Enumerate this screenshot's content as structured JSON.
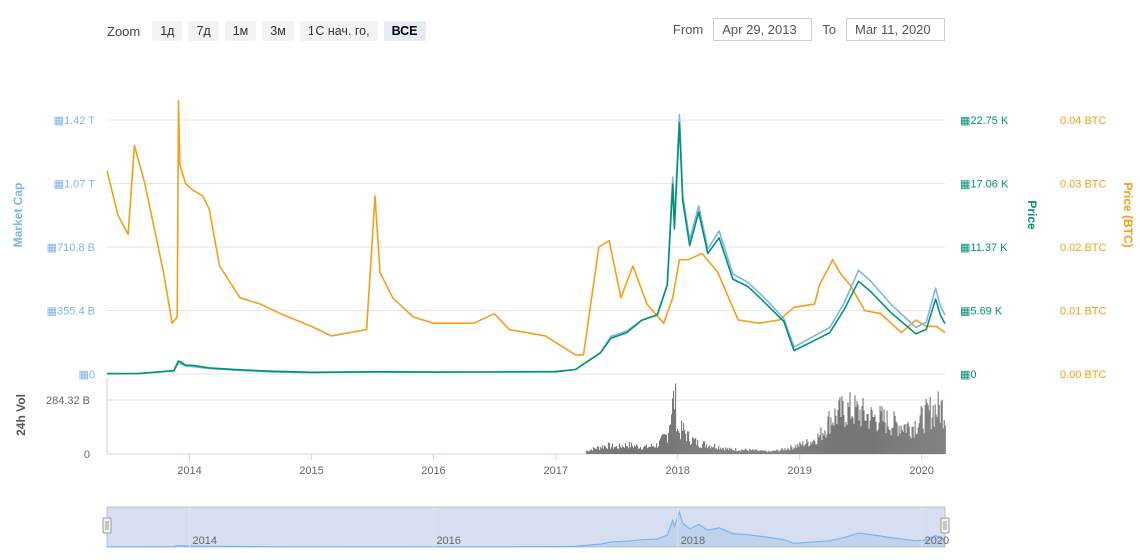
{
  "toolbar": {
    "zoom_label": "Zoom",
    "zoom_buttons": [
      "1д",
      "7д",
      "1м",
      "3м",
      "1г",
      "С нач. го,",
      "ВСЕ"
    ],
    "active_zoom": "ВСЕ",
    "from_label": "From",
    "from_value": "Apr 29, 2013",
    "to_label": "To",
    "to_value": "Mar 11, 2020"
  },
  "colors": {
    "market_cap": "#7cb5ec",
    "price": "#00936f",
    "price_btc": "#f2a01a",
    "volume": "#777777",
    "navigator_fill": "#d6def0"
  },
  "chart_data": {
    "type": "line",
    "title": "",
    "x_axis": {
      "ticks": [
        "2014",
        "2015",
        "2016",
        "2017",
        "2018",
        "2019",
        "2020"
      ],
      "tick_dates": [
        "2014-01-01",
        "2015-01-01",
        "2016-01-01",
        "2017-01-01",
        "2018-01-01",
        "2019-01-01",
        "2020-01-01"
      ],
      "range": [
        "2013-04-29",
        "2020-03-11"
      ]
    },
    "y_axes": {
      "market_cap": {
        "label": "Market Cap",
        "ticks": [
          "0",
          "355.4 B",
          "710.8 B",
          "1.07 T",
          "1.42 T"
        ],
        "range": [
          0,
          1420
        ]
      },
      "price": {
        "label": "Price",
        "ticks": [
          "0",
          "5.69 K",
          "11.37 K",
          "17.06 K",
          "22.75 K"
        ],
        "range": [
          0,
          22750
        ]
      },
      "price_btc": {
        "label": "Price (BTC)",
        "ticks": [
          "0.00 BTC",
          "0.01 BTC",
          "0.02 BTC",
          "0.03 BTC",
          "0.04 BTC"
        ],
        "range": [
          0,
          0.04
        ]
      },
      "volume": {
        "label": "24h Vol",
        "ticks": [
          "0",
          "284.32 B"
        ],
        "range": [
          0,
          400
        ]
      }
    },
    "series": [
      {
        "name": "Market Cap",
        "axis": "market_cap",
        "points": [
          [
            "2013-04-29",
            3
          ],
          [
            "2013-08-01",
            3
          ],
          [
            "2013-11-15",
            18
          ],
          [
            "2013-11-28",
            60
          ],
          [
            "2013-12-05",
            58
          ],
          [
            "2013-12-20",
            45
          ],
          [
            "2014-01-15",
            40
          ],
          [
            "2014-03-01",
            30
          ],
          [
            "2014-06-01",
            20
          ],
          [
            "2014-09-01",
            12
          ],
          [
            "2015-01-01",
            8
          ],
          [
            "2015-07-15",
            12
          ],
          [
            "2016-01-01",
            10
          ],
          [
            "2016-06-01",
            11
          ],
          [
            "2017-01-01",
            15
          ],
          [
            "2017-03-01",
            25
          ],
          [
            "2017-05-15",
            120
          ],
          [
            "2017-06-15",
            210
          ],
          [
            "2017-08-01",
            240
          ],
          [
            "2017-09-15",
            300
          ],
          [
            "2017-11-01",
            330
          ],
          [
            "2017-12-01",
            500
          ],
          [
            "2017-12-17",
            1100
          ],
          [
            "2017-12-22",
            850
          ],
          [
            "2018-01-06",
            1450
          ],
          [
            "2018-01-16",
            1000
          ],
          [
            "2018-02-06",
            750
          ],
          [
            "2018-03-05",
            940
          ],
          [
            "2018-04-01",
            700
          ],
          [
            "2018-05-05",
            800
          ],
          [
            "2018-06-15",
            560
          ],
          [
            "2018-08-01",
            510
          ],
          [
            "2018-09-15",
            430
          ],
          [
            "2018-11-15",
            310
          ],
          [
            "2018-12-15",
            150
          ],
          [
            "2019-02-01",
            200
          ],
          [
            "2019-04-01",
            260
          ],
          [
            "2019-05-15",
            400
          ],
          [
            "2019-06-26",
            580
          ],
          [
            "2019-08-01",
            520
          ],
          [
            "2019-10-01",
            390
          ],
          [
            "2019-12-15",
            260
          ],
          [
            "2020-01-15",
            290
          ],
          [
            "2020-02-12",
            480
          ],
          [
            "2020-02-26",
            380
          ],
          [
            "2020-03-11",
            330
          ]
        ]
      },
      {
        "name": "Price",
        "axis": "price",
        "points": [
          [
            "2013-04-29",
            30
          ],
          [
            "2013-08-01",
            40
          ],
          [
            "2013-11-15",
            300
          ],
          [
            "2013-11-28",
            1150
          ],
          [
            "2013-12-05",
            1100
          ],
          [
            "2013-12-20",
            800
          ],
          [
            "2014-01-15",
            750
          ],
          [
            "2014-03-01",
            550
          ],
          [
            "2014-06-01",
            380
          ],
          [
            "2014-09-01",
            250
          ],
          [
            "2015-01-01",
            150
          ],
          [
            "2015-07-15",
            200
          ],
          [
            "2016-01-01",
            170
          ],
          [
            "2016-06-01",
            180
          ],
          [
            "2017-01-01",
            200
          ],
          [
            "2017-03-01",
            400
          ],
          [
            "2017-05-15",
            1900
          ],
          [
            "2017-06-15",
            3200
          ],
          [
            "2017-08-01",
            3700
          ],
          [
            "2017-09-15",
            4800
          ],
          [
            "2017-11-01",
            5300
          ],
          [
            "2017-12-01",
            8000
          ],
          [
            "2017-12-17",
            17000
          ],
          [
            "2017-12-22",
            13000
          ],
          [
            "2018-01-06",
            22500
          ],
          [
            "2018-01-16",
            15500
          ],
          [
            "2018-02-06",
            11500
          ],
          [
            "2018-03-05",
            14500
          ],
          [
            "2018-04-01",
            10800
          ],
          [
            "2018-05-05",
            12200
          ],
          [
            "2018-06-15",
            8500
          ],
          [
            "2018-08-01",
            7800
          ],
          [
            "2018-09-15",
            6500
          ],
          [
            "2018-11-15",
            4700
          ],
          [
            "2018-12-15",
            2100
          ],
          [
            "2019-02-01",
            2800
          ],
          [
            "2019-04-01",
            3700
          ],
          [
            "2019-05-15",
            5800
          ],
          [
            "2019-06-26",
            8300
          ],
          [
            "2019-08-01",
            7400
          ],
          [
            "2019-10-01",
            5500
          ],
          [
            "2019-12-15",
            3600
          ],
          [
            "2020-01-15",
            4000
          ],
          [
            "2020-02-12",
            6700
          ],
          [
            "2020-02-26",
            5300
          ],
          [
            "2020-03-11",
            4500
          ]
        ]
      },
      {
        "name": "Price (BTC)",
        "axis": "price_btc",
        "points": [
          [
            "2013-04-29",
            0.032
          ],
          [
            "2013-06-01",
            0.025
          ],
          [
            "2013-07-01",
            0.022
          ],
          [
            "2013-07-20",
            0.036
          ],
          [
            "2013-08-20",
            0.03
          ],
          [
            "2013-10-15",
            0.016
          ],
          [
            "2013-11-10",
            0.008
          ],
          [
            "2013-11-25",
            0.009
          ],
          [
            "2013-11-29",
            0.043
          ],
          [
            "2013-12-03",
            0.033
          ],
          [
            "2013-12-20",
            0.03
          ],
          [
            "2014-01-10",
            0.029
          ],
          [
            "2014-02-10",
            0.028
          ],
          [
            "2014-03-01",
            0.026
          ],
          [
            "2014-04-01",
            0.017
          ],
          [
            "2014-06-01",
            0.012
          ],
          [
            "2014-08-01",
            0.011
          ],
          [
            "2014-10-01",
            0.0095
          ],
          [
            "2015-01-01",
            0.0075
          ],
          [
            "2015-03-01",
            0.006
          ],
          [
            "2015-06-15",
            0.007
          ],
          [
            "2015-07-10",
            0.028
          ],
          [
            "2015-07-25",
            0.016
          ],
          [
            "2015-09-01",
            0.012
          ],
          [
            "2015-11-01",
            0.009
          ],
          [
            "2016-01-01",
            0.008
          ],
          [
            "2016-05-01",
            0.008
          ],
          [
            "2016-07-01",
            0.0095
          ],
          [
            "2016-08-15",
            0.007
          ],
          [
            "2016-12-01",
            0.006
          ],
          [
            "2017-03-01",
            0.003
          ],
          [
            "2017-03-25",
            0.003
          ],
          [
            "2017-05-10",
            0.02
          ],
          [
            "2017-06-10",
            0.021
          ],
          [
            "2017-07-15",
            0.012
          ],
          [
            "2017-08-20",
            0.017
          ],
          [
            "2017-10-01",
            0.011
          ],
          [
            "2017-11-20",
            0.008
          ],
          [
            "2017-12-17",
            0.012
          ],
          [
            "2018-01-06",
            0.018
          ],
          [
            "2018-02-01",
            0.018
          ],
          [
            "2018-03-15",
            0.019
          ],
          [
            "2018-05-01",
            0.016
          ],
          [
            "2018-07-01",
            0.0085
          ],
          [
            "2018-09-01",
            0.008
          ],
          [
            "2018-11-01",
            0.0085
          ],
          [
            "2018-12-15",
            0.0105
          ],
          [
            "2019-02-15",
            0.011
          ],
          [
            "2019-03-01",
            0.014
          ],
          [
            "2019-04-10",
            0.018
          ],
          [
            "2019-05-01",
            0.016
          ],
          [
            "2019-06-01",
            0.014
          ],
          [
            "2019-07-15",
            0.01
          ],
          [
            "2019-09-01",
            0.0095
          ],
          [
            "2019-11-01",
            0.0065
          ],
          [
            "2019-12-15",
            0.0085
          ],
          [
            "2020-01-15",
            0.0075
          ],
          [
            "2020-02-15",
            0.0075
          ],
          [
            "2020-03-11",
            0.0065
          ]
        ]
      }
    ],
    "volume": {
      "name": "24h Vol",
      "axis": "volume",
      "points": [
        [
          "2017-04-01",
          20
        ],
        [
          "2017-05-01",
          40
        ],
        [
          "2017-06-01",
          55
        ],
        [
          "2017-07-01",
          45
        ],
        [
          "2017-08-01",
          60
        ],
        [
          "2017-09-01",
          50
        ],
        [
          "2017-10-01",
          45
        ],
        [
          "2017-11-01",
          60
        ],
        [
          "2017-12-01",
          130
        ],
        [
          "2017-12-08",
          250
        ],
        [
          "2017-12-22",
          380
        ],
        [
          "2018-01-01",
          140
        ],
        [
          "2018-01-15",
          160
        ],
        [
          "2018-02-01",
          110
        ],
        [
          "2018-03-01",
          70
        ],
        [
          "2018-04-01",
          60
        ],
        [
          "2018-05-01",
          50
        ],
        [
          "2018-06-01",
          30
        ],
        [
          "2018-07-01",
          30
        ],
        [
          "2018-08-01",
          25
        ],
        [
          "2018-09-01",
          20
        ],
        [
          "2018-10-01",
          15
        ],
        [
          "2018-11-01",
          25
        ],
        [
          "2018-12-01",
          40
        ],
        [
          "2019-01-01",
          60
        ],
        [
          "2019-02-01",
          80
        ],
        [
          "2019-03-01",
          120
        ],
        [
          "2019-04-01",
          230
        ],
        [
          "2019-05-01",
          270
        ],
        [
          "2019-06-01",
          290
        ],
        [
          "2019-07-01",
          270
        ],
        [
          "2019-08-01",
          240
        ],
        [
          "2019-09-01",
          230
        ],
        [
          "2019-10-01",
          200
        ],
        [
          "2019-11-01",
          190
        ],
        [
          "2019-12-01",
          180
        ],
        [
          "2020-01-01",
          230
        ],
        [
          "2020-02-01",
          290
        ],
        [
          "2020-03-01",
          300
        ],
        [
          "2020-03-11",
          280
        ]
      ]
    },
    "navigator": {
      "ticks": [
        "2014",
        "2016",
        "2018",
        "2020"
      ],
      "tick_dates": [
        "2014-01-01",
        "2016-01-01",
        "2018-01-01",
        "2020-01-01"
      ],
      "selection": [
        "2013-04-29",
        "2020-03-11"
      ]
    },
    "legend": "none"
  }
}
